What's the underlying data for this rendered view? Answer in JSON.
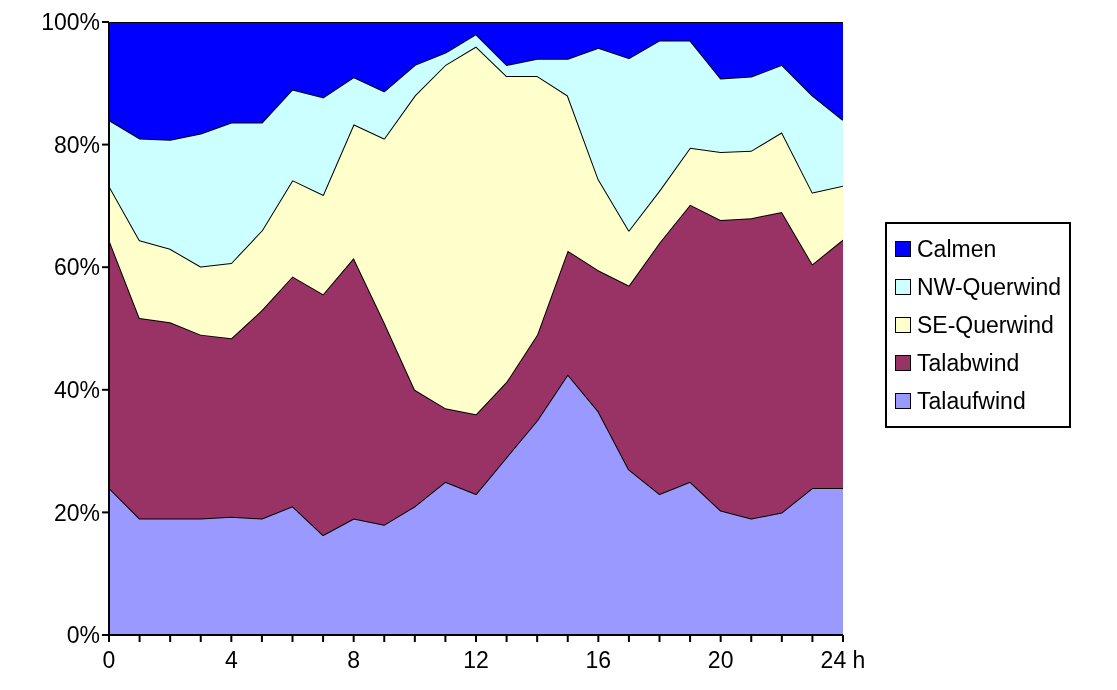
{
  "chart_data": {
    "type": "area",
    "stacked": true,
    "legend": "right",
    "grid": false,
    "marker": "none",
    "x": [
      0,
      1,
      2,
      3,
      4,
      5,
      6,
      7,
      8,
      9,
      10,
      11,
      12,
      13,
      14,
      15,
      16,
      17,
      18,
      19,
      20,
      21,
      22,
      23,
      24
    ],
    "xlim": [
      0,
      24
    ],
    "xticks": [
      0,
      {
        "value": 1,
        "label": null
      },
      {
        "value": 2,
        "label": null
      },
      {
        "value": 3,
        "label": null
      },
      4,
      {
        "value": 5,
        "label": null
      },
      {
        "value": 6,
        "label": null
      },
      {
        "value": 7,
        "label": null
      },
      8,
      {
        "value": 9,
        "label": null
      },
      {
        "value": 10,
        "label": null
      },
      {
        "value": 11,
        "label": null
      },
      12,
      {
        "value": 13,
        "label": null
      },
      {
        "value": 14,
        "label": null
      },
      {
        "value": 15,
        "label": null
      },
      16,
      {
        "value": 17,
        "label": null
      },
      {
        "value": 18,
        "label": null
      },
      {
        "value": 19,
        "label": null
      },
      20,
      {
        "value": 21,
        "label": null
      },
      {
        "value": 22,
        "label": null
      },
      {
        "value": 23,
        "label": null
      },
      {
        "value": 24,
        "label": "24 h"
      }
    ],
    "ylim": [
      0,
      100
    ],
    "yticks": [
      {
        "value": 0,
        "label": "0%"
      },
      {
        "value": 20,
        "label": "20%"
      },
      {
        "value": 40,
        "label": "40%"
      },
      {
        "value": 60,
        "label": "60%"
      },
      {
        "value": 80,
        "label": "80%"
      },
      {
        "value": 100,
        "label": "100%"
      }
    ],
    "series": [
      {
        "name": "Talaufwind",
        "color": "#9999ff",
        "values": [
          24,
          19,
          19,
          19,
          19.3,
          19,
          21,
          16.3,
          19,
          18,
          21,
          25,
          23,
          29,
          35,
          42.5,
          36.5,
          27,
          23,
          25,
          20.3,
          19,
          20,
          24,
          24
        ]
      },
      {
        "name": "Talabwind",
        "color": "#993366",
        "values": [
          40.5,
          32.7,
          32,
          30,
          29.1,
          34,
          37.5,
          39.3,
          42.5,
          33,
          19,
          12,
          13,
          12.3,
          14,
          20.2,
          23,
          30,
          41,
          45.2,
          47.4,
          49,
          49,
          36.5,
          40.5
        ]
      },
      {
        "name": "SE-Querwind",
        "color": "#ffffcc",
        "values": [
          8.8,
          12.7,
          12,
          11.1,
          12.3,
          13,
          15.7,
          16.2,
          21.8,
          30,
          48,
          56,
          60,
          49.9,
          42.2,
          25.3,
          14.9,
          9,
          8.5,
          9.3,
          11.1,
          11,
          13,
          11.7,
          8.8
        ]
      },
      {
        "name": "NW-Querwind",
        "color": "#ccffff",
        "values": [
          10.7,
          16.6,
          17.8,
          21.7,
          22.9,
          17.6,
          14.8,
          15.9,
          7.7,
          7.7,
          5,
          2,
          2,
          1.8,
          2.8,
          6,
          21.4,
          28.1,
          24.5,
          17.5,
          12,
          12.1,
          11,
          15.8,
          10.7
        ]
      },
      {
        "name": "Calmen",
        "color": "#0000ff",
        "values": [
          16,
          19,
          19.2,
          18.2,
          16.4,
          16.4,
          11,
          12.3,
          9,
          11.3,
          7,
          5,
          2,
          7,
          6,
          6,
          4.2,
          5.9,
          3,
          3,
          9.2,
          8.9,
          7,
          12,
          16
        ]
      }
    ]
  }
}
